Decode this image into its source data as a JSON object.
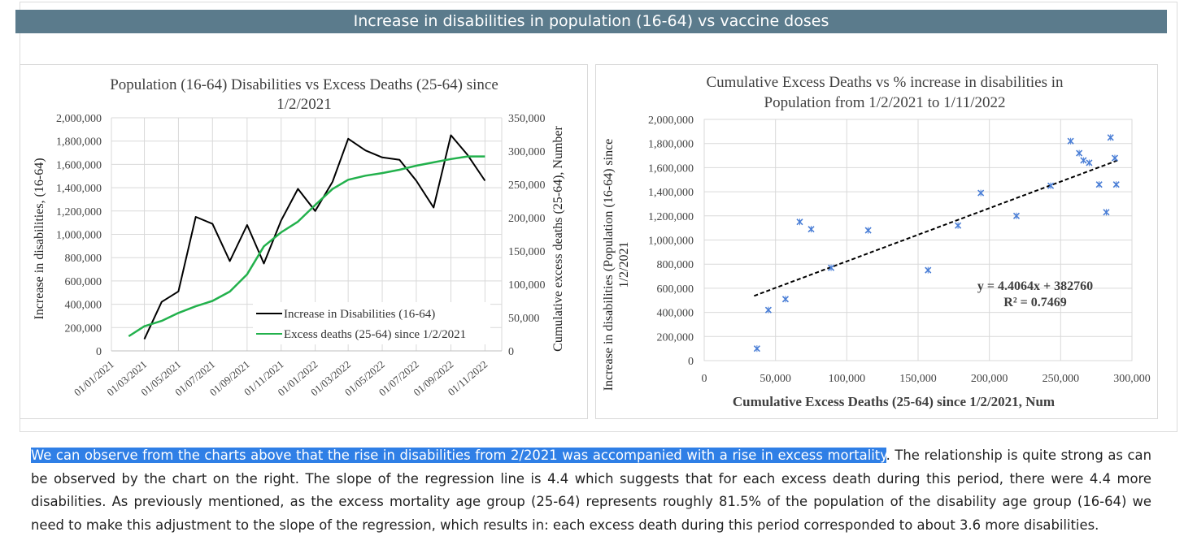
{
  "banner": {
    "title": "Increase in disabilities in population (16-64) vs vaccine doses"
  },
  "chart_data": [
    {
      "type": "line",
      "title": "Population (16-64) Disabilities vs Excess Deaths (25-64) since 1/2/2021",
      "title_lines": [
        "Population (16-64) Disabilities vs Excess Deaths (25-64) since",
        "1/2/2021"
      ],
      "ylabel": "Increase in disabilities, (16-64)",
      "y2label": "Cumulative excess deaths (25-64), Number",
      "ylim": [
        0,
        2000000
      ],
      "y2lim": [
        0,
        350000
      ],
      "y_ticks": [
        "0",
        "200,000",
        "400,000",
        "600,000",
        "800,000",
        "1,000,000",
        "1,200,000",
        "1,400,000",
        "1,600,000",
        "1,800,000",
        "2,000,000"
      ],
      "y2_ticks": [
        "0",
        "50,000",
        "100,000",
        "150,000",
        "200,000",
        "250,000",
        "300,000",
        "350,000"
      ],
      "x_ticks": [
        "01/01/2021",
        "01/03/2021",
        "01/05/2021",
        "01/07/2021",
        "01/09/2021",
        "01/11/2021",
        "01/01/2022",
        "01/03/2022",
        "01/05/2022",
        "01/07/2022",
        "01/09/2022",
        "01/11/2022"
      ],
      "grid": true,
      "legend_position": "bottom-right",
      "series": [
        {
          "name": "Increase in Disabilities (16-64)",
          "axis": "left",
          "color": "#000000",
          "x": [
            "2021-03-01",
            "2021-04-01",
            "2021-05-01",
            "2021-06-01",
            "2021-07-01",
            "2021-08-01",
            "2021-09-01",
            "2021-10-01",
            "2021-11-01",
            "2021-12-01",
            "2022-01-01",
            "2022-02-01",
            "2022-03-01",
            "2022-04-01",
            "2022-05-01",
            "2022-06-01",
            "2022-07-01",
            "2022-08-01",
            "2022-09-01",
            "2022-10-01",
            "2022-11-01"
          ],
          "values": [
            100000,
            420000,
            510000,
            1150000,
            1090000,
            770000,
            1080000,
            750000,
            1120000,
            1390000,
            1200000,
            1450000,
            1820000,
            1720000,
            1660000,
            1640000,
            1460000,
            1230000,
            1850000,
            1680000,
            1460000
          ]
        },
        {
          "name": "Excess deaths (25-64) since 1/2/2021",
          "axis": "right",
          "color": "#22b14c",
          "x": [
            "2021-02-01",
            "2021-03-01",
            "2021-04-01",
            "2021-05-01",
            "2021-06-01",
            "2021-07-01",
            "2021-08-01",
            "2021-09-01",
            "2021-10-01",
            "2021-11-01",
            "2021-12-01",
            "2022-01-01",
            "2022-02-01",
            "2022-03-01",
            "2022-04-01",
            "2022-05-01",
            "2022-06-01",
            "2022-07-01",
            "2022-08-01",
            "2022-09-01",
            "2022-10-01",
            "2022-11-01"
          ],
          "values": [
            22000,
            37000,
            45000,
            57000,
            67000,
            75000,
            89000,
            115000,
            157000,
            178000,
            194000,
            219000,
            243000,
            257000,
            263000,
            267000,
            272000,
            278000,
            283000,
            288000,
            292000,
            292000
          ]
        }
      ]
    },
    {
      "type": "scatter",
      "title": "Cumulative Excess Deaths vs % increase in disabilities in Population from 1/2/2021 to 1/11/2022",
      "title_lines": [
        "Cumulative Excess Deaths vs % increase in disabilities in",
        "Population from 1/2/2021 to 1/11/2022"
      ],
      "xlabel": "Cumulative Excess Deaths (25-64) since 1/2/2021, Num",
      "ylabel_lines": [
        "Increase in disabilities (Population (16-64) since",
        "1/2/2021"
      ],
      "xlim": [
        0,
        300000
      ],
      "ylim": [
        0,
        2000000
      ],
      "x_ticks": [
        "0",
        "50,000",
        "100,000",
        "150,000",
        "200,000",
        "250,000",
        "300,000"
      ],
      "y_ticks": [
        "0",
        "200,000",
        "400,000",
        "600,000",
        "800,000",
        "1,000,000",
        "1,200,000",
        "1,400,000",
        "1,600,000",
        "1,800,000",
        "2,000,000"
      ],
      "grid": true,
      "marker_color": "#4a7ed6",
      "points": [
        [
          37000,
          100000
        ],
        [
          45000,
          420000
        ],
        [
          57000,
          510000
        ],
        [
          67000,
          1150000
        ],
        [
          75000,
          1090000
        ],
        [
          89000,
          770000
        ],
        [
          115000,
          1080000
        ],
        [
          157000,
          750000
        ],
        [
          178000,
          1120000
        ],
        [
          194000,
          1390000
        ],
        [
          219000,
          1200000
        ],
        [
          243000,
          1450000
        ],
        [
          257000,
          1820000
        ],
        [
          263000,
          1720000
        ],
        [
          266000,
          1660000
        ],
        [
          270000,
          1640000
        ],
        [
          277000,
          1460000
        ],
        [
          282000,
          1230000
        ],
        [
          285000,
          1850000
        ],
        [
          288000,
          1680000
        ],
        [
          289000,
          1460000
        ]
      ],
      "trendline": {
        "slope": 4.4064,
        "intercept": 382760,
        "x_range": [
          35000,
          290000
        ],
        "style": "dashed"
      },
      "equation": "y = 4.4064x + 382760",
      "r_squared": "R² = 0.7469"
    }
  ],
  "paragraph": {
    "highlighted": "We can observe from the charts above that the rise in disabilities from 2/2021 was accompanied with a rise in excess mortality",
    "rest": ". The relationship is quite strong as can be observed by the chart on the right. The slope of the regression line is 4.4 which suggests that for each excess death during this period, there were 4.4 more disabilities. As previously mentioned, as the excess mortality age group (25-64) represents roughly 81.5% of the population of the disability age group (16-64) we need to make this adjustment to the slope of the regression, which results in: each excess death during this period corresponded to about 3.6 more disabilities."
  }
}
